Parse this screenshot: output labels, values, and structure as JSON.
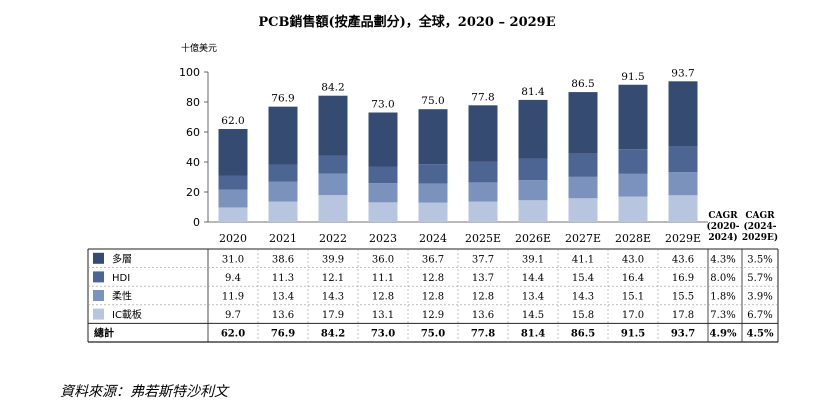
{
  "title": "PCB銷售額(按產品劃分)，全球，2020 – 2029E",
  "source": "資料來源：弗若斯特沙利文",
  "chart_data": {
    "type": "bar",
    "stacked": true,
    "unit": "十億美元",
    "ylim": [
      0,
      100
    ],
    "yticks": [
      0,
      20,
      40,
      60,
      80,
      100
    ],
    "categories": [
      "2020",
      "2021",
      "2022",
      "2023",
      "2024",
      "2025E",
      "2026E",
      "2027E",
      "2028E",
      "2029E"
    ],
    "series": [
      {
        "name": "IC載板",
        "color": "#b7c6de",
        "values": [
          9.7,
          13.6,
          17.9,
          13.1,
          12.9,
          13.6,
          14.5,
          15.8,
          17.0,
          17.8
        ],
        "cagr": [
          "7.3%",
          "6.7%"
        ]
      },
      {
        "name": "柔性",
        "color": "#7b92bd",
        "values": [
          11.9,
          13.4,
          14.3,
          12.8,
          12.8,
          12.8,
          13.4,
          14.3,
          15.1,
          15.5
        ],
        "cagr": [
          "1.8%",
          "3.9%"
        ]
      },
      {
        "name": "HDI",
        "color": "#4c6593",
        "values": [
          9.4,
          11.3,
          12.1,
          11.1,
          12.8,
          13.7,
          14.4,
          15.4,
          16.4,
          16.9
        ],
        "cagr": [
          "8.0%",
          "5.7%"
        ]
      },
      {
        "name": "多層",
        "color": "#364b72",
        "values": [
          31.0,
          38.6,
          39.9,
          36.0,
          36.7,
          37.7,
          39.1,
          41.1,
          43.0,
          43.6
        ],
        "cagr": [
          "4.3%",
          "3.5%"
        ]
      }
    ],
    "totals": {
      "name": "總計",
      "values": [
        "62.0",
        "76.9",
        "84.2",
        "73.0",
        "75.0",
        "77.8",
        "81.4",
        "86.5",
        "91.5",
        "93.7"
      ],
      "cagr": [
        "4.9%",
        "4.5%"
      ]
    },
    "cagr_headers": [
      [
        "CAGR",
        "(2020-",
        "2024)"
      ],
      [
        "CAGR",
        "(2024-",
        "2029E)"
      ]
    ]
  }
}
